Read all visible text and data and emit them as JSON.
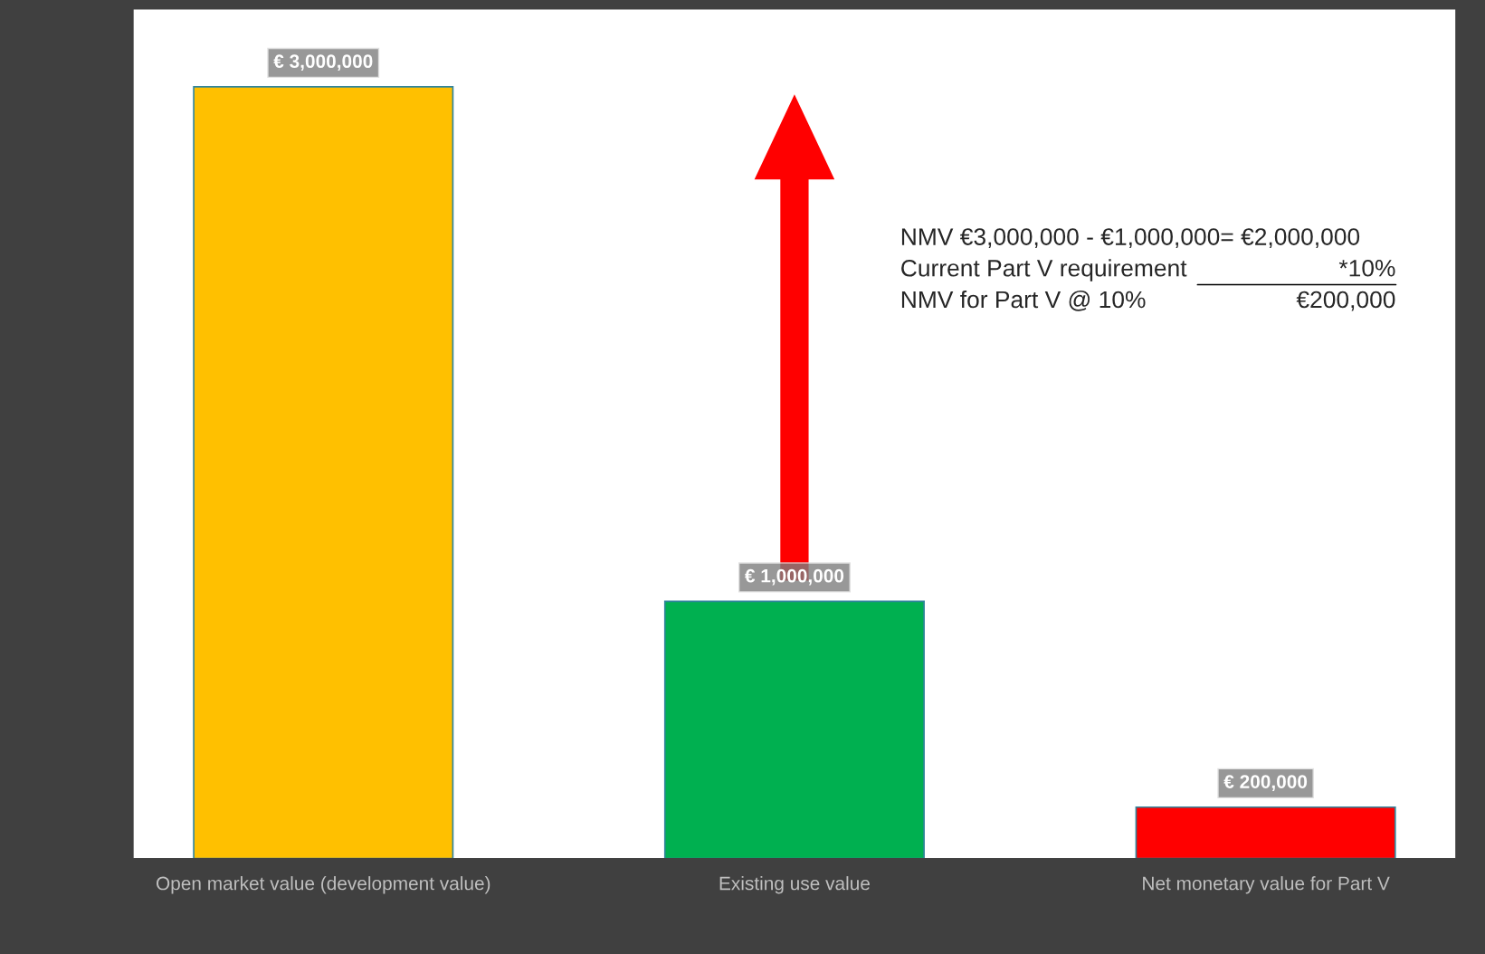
{
  "chart_data": {
    "type": "bar",
    "categories": [
      "Open market value (development value)",
      "Existing use value",
      "Net monetary value for Part V"
    ],
    "values": [
      3000000,
      1000000,
      200000
    ],
    "colors": [
      "#ffc000",
      "#00b050",
      "#ff0000"
    ],
    "value_labels": [
      "€ 3,000,000",
      "€ 1,000,000",
      "€ 200,000"
    ],
    "annotations": [
      "NMV €3,000,000 - €1,000,000= €2,000,000",
      "Current Part V requirement",
      "*10%",
      "NMV for Part V @ 10%",
      "€200,000"
    ],
    "grid": false,
    "legend": false
  }
}
